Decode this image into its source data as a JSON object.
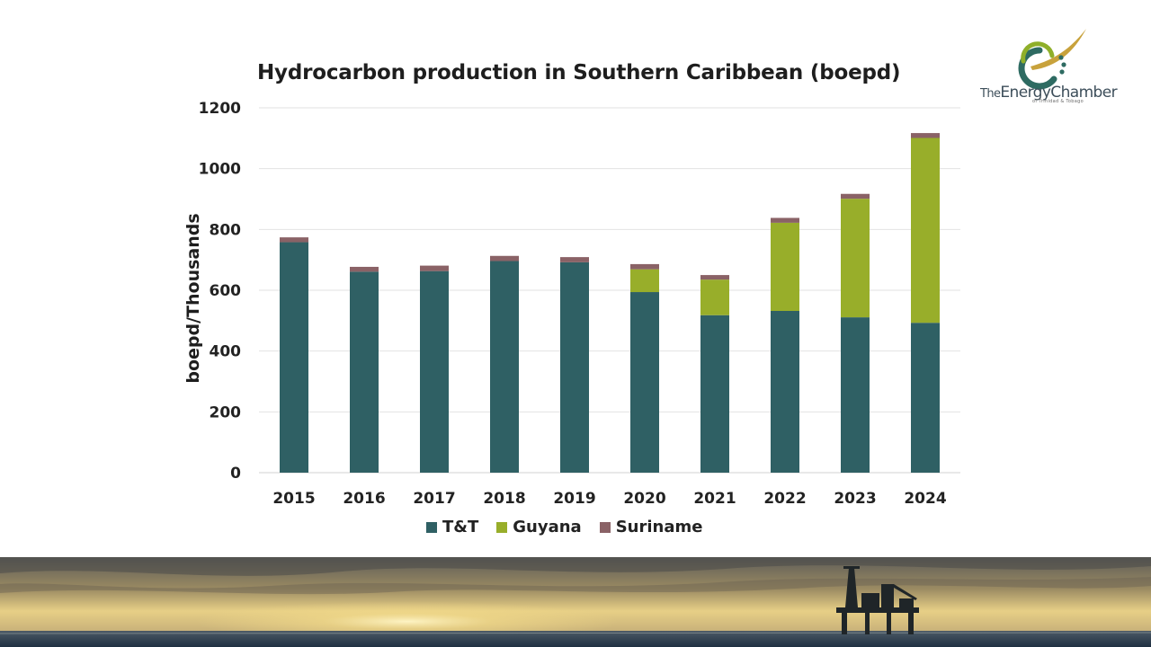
{
  "logo": {
    "name_prefix": "The",
    "name_main": "EnergyChamber",
    "tagline": "of Trinidad & Tobago",
    "brand_colors": {
      "teal": "#2e6b62",
      "green": "#8faf2a",
      "gold": "#c8a23c"
    }
  },
  "chart_data": {
    "type": "bar",
    "stacked": true,
    "title": "Hydrocarbon production in Southern Caribbean (boepd)",
    "xlabel": "",
    "ylabel": "boepd/Thousands",
    "ylim": [
      0,
      1200
    ],
    "yticks": [
      0,
      200,
      400,
      600,
      800,
      1000,
      1200
    ],
    "grid": true,
    "legend_position": "bottom",
    "categories": [
      "2015",
      "2016",
      "2017",
      "2018",
      "2019",
      "2020",
      "2021",
      "2022",
      "2023",
      "2024"
    ],
    "series": [
      {
        "name": "T&T",
        "color": "#2f6064",
        "values": [
          758,
          661,
          663,
          696,
          692,
          594,
          518,
          532,
          511,
          493
        ]
      },
      {
        "name": "Guyana",
        "color": "#98ae2a",
        "values": [
          0,
          0,
          0,
          0,
          0,
          75,
          117,
          290,
          390,
          608
        ]
      },
      {
        "name": "Suriname",
        "color": "#8a6266",
        "values": [
          16,
          16,
          18,
          17,
          17,
          17,
          15,
          16,
          16,
          16
        ]
      }
    ]
  },
  "banner": {
    "description_colors": {
      "sky_top": "#5b5b5a",
      "sun": "#f6e7a6",
      "sea": "#2b3d4f"
    }
  }
}
